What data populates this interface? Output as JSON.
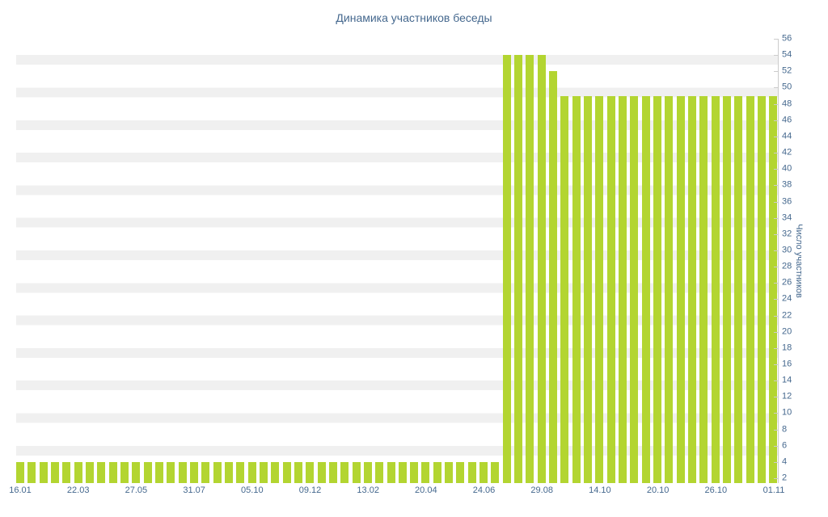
{
  "chart_data": {
    "type": "bar",
    "title": "Динамика участников беседы",
    "xlabel": "",
    "ylabel": "Число участников",
    "ylim": [
      2,
      56
    ],
    "ytick_step": 2,
    "y_axis_position": "right",
    "grid": "horizontal-stripes",
    "legend": "none",
    "x_tick_every": 5,
    "x_tick_labels": [
      "16.01",
      "22.03",
      "27.05",
      "31.07",
      "05.10",
      "09.12",
      "13.02",
      "20.04",
      "24.06",
      "29.08",
      "14.10",
      "20.10",
      "26.10",
      "01.11"
    ],
    "values": [
      4,
      4,
      4,
      4,
      4,
      4,
      4,
      4,
      4,
      4,
      4,
      4,
      4,
      4,
      4,
      4,
      4,
      4,
      4,
      4,
      4,
      4,
      4,
      4,
      4,
      4,
      4,
      4,
      4,
      4,
      4,
      4,
      4,
      4,
      4,
      4,
      4,
      4,
      4,
      4,
      4,
      4,
      54,
      54,
      54,
      54,
      52,
      49,
      49,
      49,
      49,
      49,
      49,
      49,
      49,
      49,
      49,
      49,
      49,
      49,
      49,
      49,
      49,
      49,
      49,
      49
    ],
    "colors": {
      "bar": "#b3d531",
      "label": "#45688e",
      "stripe": "#f0f0f0",
      "axis": "#cccccc"
    }
  }
}
